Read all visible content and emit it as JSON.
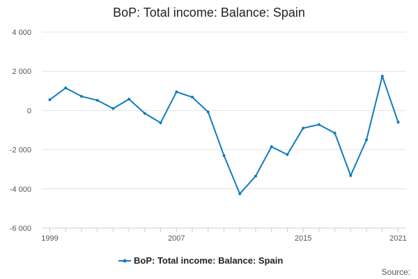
{
  "chart_data": {
    "type": "line",
    "title": "BoP: Total income: Balance: Spain",
    "xlabel": "",
    "ylabel": "",
    "x": [
      1999,
      2000,
      2001,
      2002,
      2003,
      2004,
      2005,
      2006,
      2007,
      2008,
      2009,
      2010,
      2011,
      2012,
      2013,
      2014,
      2015,
      2016,
      2017,
      2018,
      2019,
      2020,
      2021
    ],
    "x_tick_labels": [
      "1999",
      "2007",
      "2015",
      "2021"
    ],
    "y_tick_labels": [
      "4 000",
      "2 000",
      "0",
      "-2 000",
      "-4 000",
      "-6 000"
    ],
    "ylim": [
      -6000,
      4000
    ],
    "grid": true,
    "legend_position": "bottom",
    "series": [
      {
        "name": "BoP: Total income: Balance: Spain",
        "color": "#0f7bbf",
        "values": [
          550,
          1150,
          720,
          520,
          100,
          580,
          -150,
          -630,
          950,
          680,
          -80,
          -2300,
          -4250,
          -3350,
          -1850,
          -2250,
          -900,
          -720,
          -1150,
          -3320,
          -1500,
          1750,
          -600
        ]
      }
    ]
  },
  "source_label": "Source:"
}
